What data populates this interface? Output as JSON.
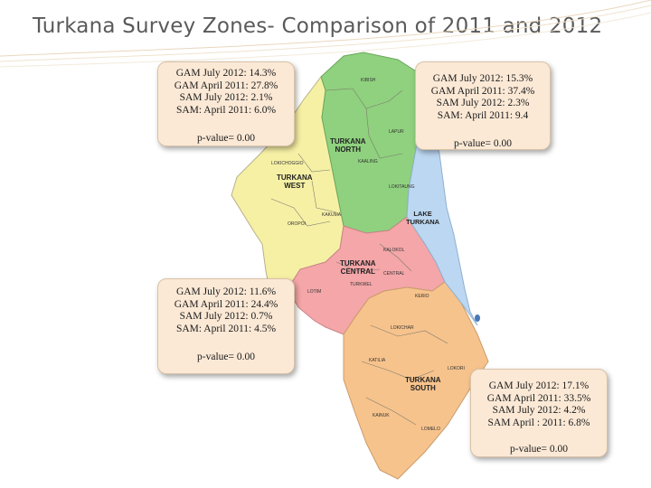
{
  "title": "Turkana Survey Zones- Comparison of 2011 and 2012",
  "colors": {
    "north": "#8fd17e",
    "west": "#f6f0a5",
    "central": "#f4a6a8",
    "south": "#f7c38c",
    "lake": "#bcd7f1",
    "box_bg": "#fbe9d6"
  },
  "boxes": {
    "west": {
      "lines": [
        "GAM July 2012: 14.3%",
        "GAM April 2011: 27.8%",
        "SAM July 2012: 2.1%",
        "SAM: April 2011: 6.0%"
      ],
      "pvalue": "p-value= 0.00"
    },
    "north": {
      "lines": [
        "GAM July 2012: 15.3%",
        "GAM April 2011: 37.4%",
        "SAM July 2012: 2.3%",
        "SAM: April 2011: 9.4"
      ],
      "pvalue": "p-value= 0.00"
    },
    "central": {
      "lines": [
        "GAM July 2012: 11.6%",
        "GAM April 2011: 24.4%",
        "SAM July 2012: 0.7%",
        "SAM: April 2011: 4.5%"
      ],
      "pvalue": "p-value= 0.00"
    },
    "south": {
      "lines": [
        "GAM July 2012: 17.1%",
        "GAM April 2011: 33.5%",
        "SAM July 2012: 4.2%",
        "SAM April : 2011: 6.8%"
      ],
      "pvalue": "p-value= 0.00"
    }
  },
  "zones": {
    "north": [
      "TURKANA",
      "NORTH"
    ],
    "west": [
      "TURKANA",
      "WEST"
    ],
    "central": [
      "TURKANA",
      "CENTRAL"
    ],
    "south": [
      "TURKANA",
      "SOUTH"
    ],
    "lake": [
      "LAKE",
      "TURKANA"
    ]
  },
  "places": {
    "kibish": "KIBISH",
    "lapur": "LAPUR",
    "kaaling": "KAALING",
    "lokichoggio": "LOKICHOGGIO",
    "kakuma": "KAKUMA",
    "oropoi": "OROPOI",
    "kalokol": "KALOKOL",
    "lotim": "LOTIM",
    "kerio": "KERIO",
    "lokichar": "LOKICHAR",
    "lokori": "LOKORI",
    "katilia": "KATILIA",
    "kainuk": "KAINUK",
    "lomelo": "LOMELO",
    "turkwel": "TURKWEL",
    "central_pl": "CENTRAL",
    "lokitaung": "LOKITAUNG"
  }
}
